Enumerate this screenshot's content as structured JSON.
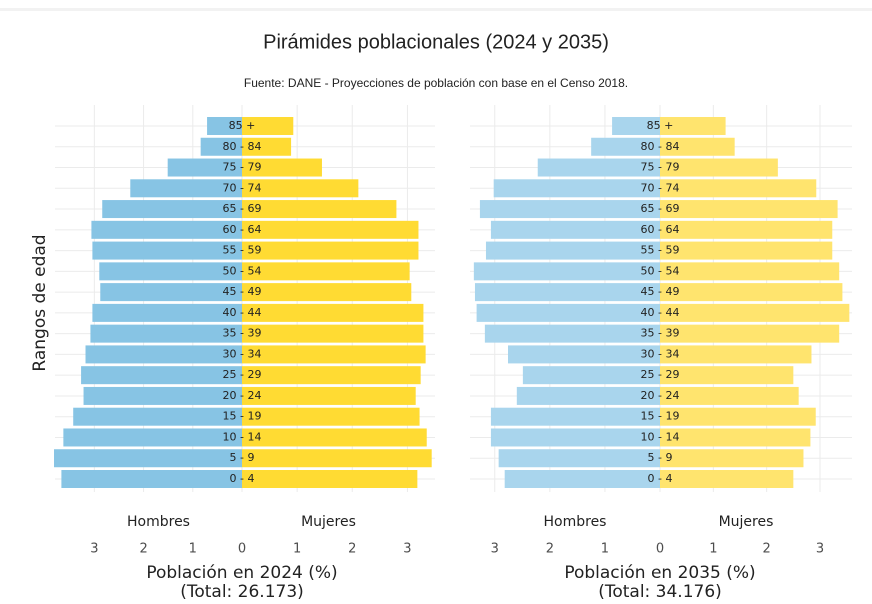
{
  "title": "Pirámides poblacionales (2024 y 2035)",
  "subtitle": "Fuente: DANE - Proyecciones de población con base en el Censo 2018.",
  "y_label": "Rangos de edad",
  "chart_data": [
    {
      "type": "pyramid",
      "x_label": "Población en 2024 (%)",
      "note": "(Total: 26.173)",
      "categories": [
        "0 - 4",
        "5 - 9",
        "10 - 14",
        "15 - 19",
        "20 - 24",
        "25 - 29",
        "30 - 34",
        "35 - 39",
        "40 - 44",
        "45 - 49",
        "50 - 54",
        "55 - 59",
        "60 - 64",
        "65 - 69",
        "70 - 74",
        "75 - 79",
        "80 - 84",
        "85 +"
      ],
      "series": [
        {
          "name": "Hombres",
          "color": "#87c4e4",
          "side": "left",
          "values": [
            3.67,
            3.82,
            3.63,
            3.43,
            3.22,
            3.27,
            3.18,
            3.08,
            3.04,
            2.88,
            2.9,
            3.04,
            3.06,
            2.84,
            2.27,
            1.51,
            0.84,
            0.71
          ]
        },
        {
          "name": "Mujeres",
          "color": "#ffdb33",
          "side": "right",
          "values": [
            3.18,
            3.44,
            3.35,
            3.22,
            3.15,
            3.24,
            3.33,
            3.29,
            3.29,
            3.07,
            3.04,
            3.2,
            3.2,
            2.8,
            2.11,
            1.45,
            0.89,
            0.93
          ]
        }
      ],
      "xlim_left": [
        0,
        3.8
      ],
      "xticks_left": [
        1,
        2,
        3
      ],
      "xlim_right": [
        0,
        3.5
      ],
      "xticks_right": [
        0,
        1,
        2,
        3
      ],
      "grid": true
    },
    {
      "type": "pyramid",
      "x_label": "Población en 2035 (%)",
      "note": "(Total: 34.176)",
      "categories": [
        "0 - 4",
        "5 - 9",
        "10 - 14",
        "15 - 19",
        "20 - 24",
        "25 - 29",
        "30 - 34",
        "35 - 39",
        "40 - 44",
        "45 - 49",
        "50 - 54",
        "55 - 59",
        "60 - 64",
        "65 - 69",
        "70 - 74",
        "75 - 79",
        "80 - 84",
        "85 +"
      ],
      "series": [
        {
          "name": "Hombres",
          "color": "#a9d5ed",
          "side": "left",
          "values": [
            2.82,
            2.93,
            3.07,
            3.07,
            2.6,
            2.49,
            2.76,
            3.18,
            3.33,
            3.36,
            3.38,
            3.16,
            3.07,
            3.27,
            3.02,
            2.22,
            1.25,
            0.87
          ]
        },
        {
          "name": "Mujeres",
          "color": "#ffe46e",
          "side": "right",
          "values": [
            2.5,
            2.69,
            2.82,
            2.92,
            2.6,
            2.5,
            2.84,
            3.36,
            3.55,
            3.42,
            3.36,
            3.23,
            3.23,
            3.33,
            2.93,
            2.21,
            1.4,
            1.23
          ]
        }
      ],
      "xlim_left": [
        0,
        3.45
      ],
      "xticks_left": [
        1,
        2,
        3
      ],
      "xlim_right": [
        0,
        3.6
      ],
      "xticks_right": [
        0,
        1,
        2,
        3
      ],
      "grid": true
    }
  ]
}
